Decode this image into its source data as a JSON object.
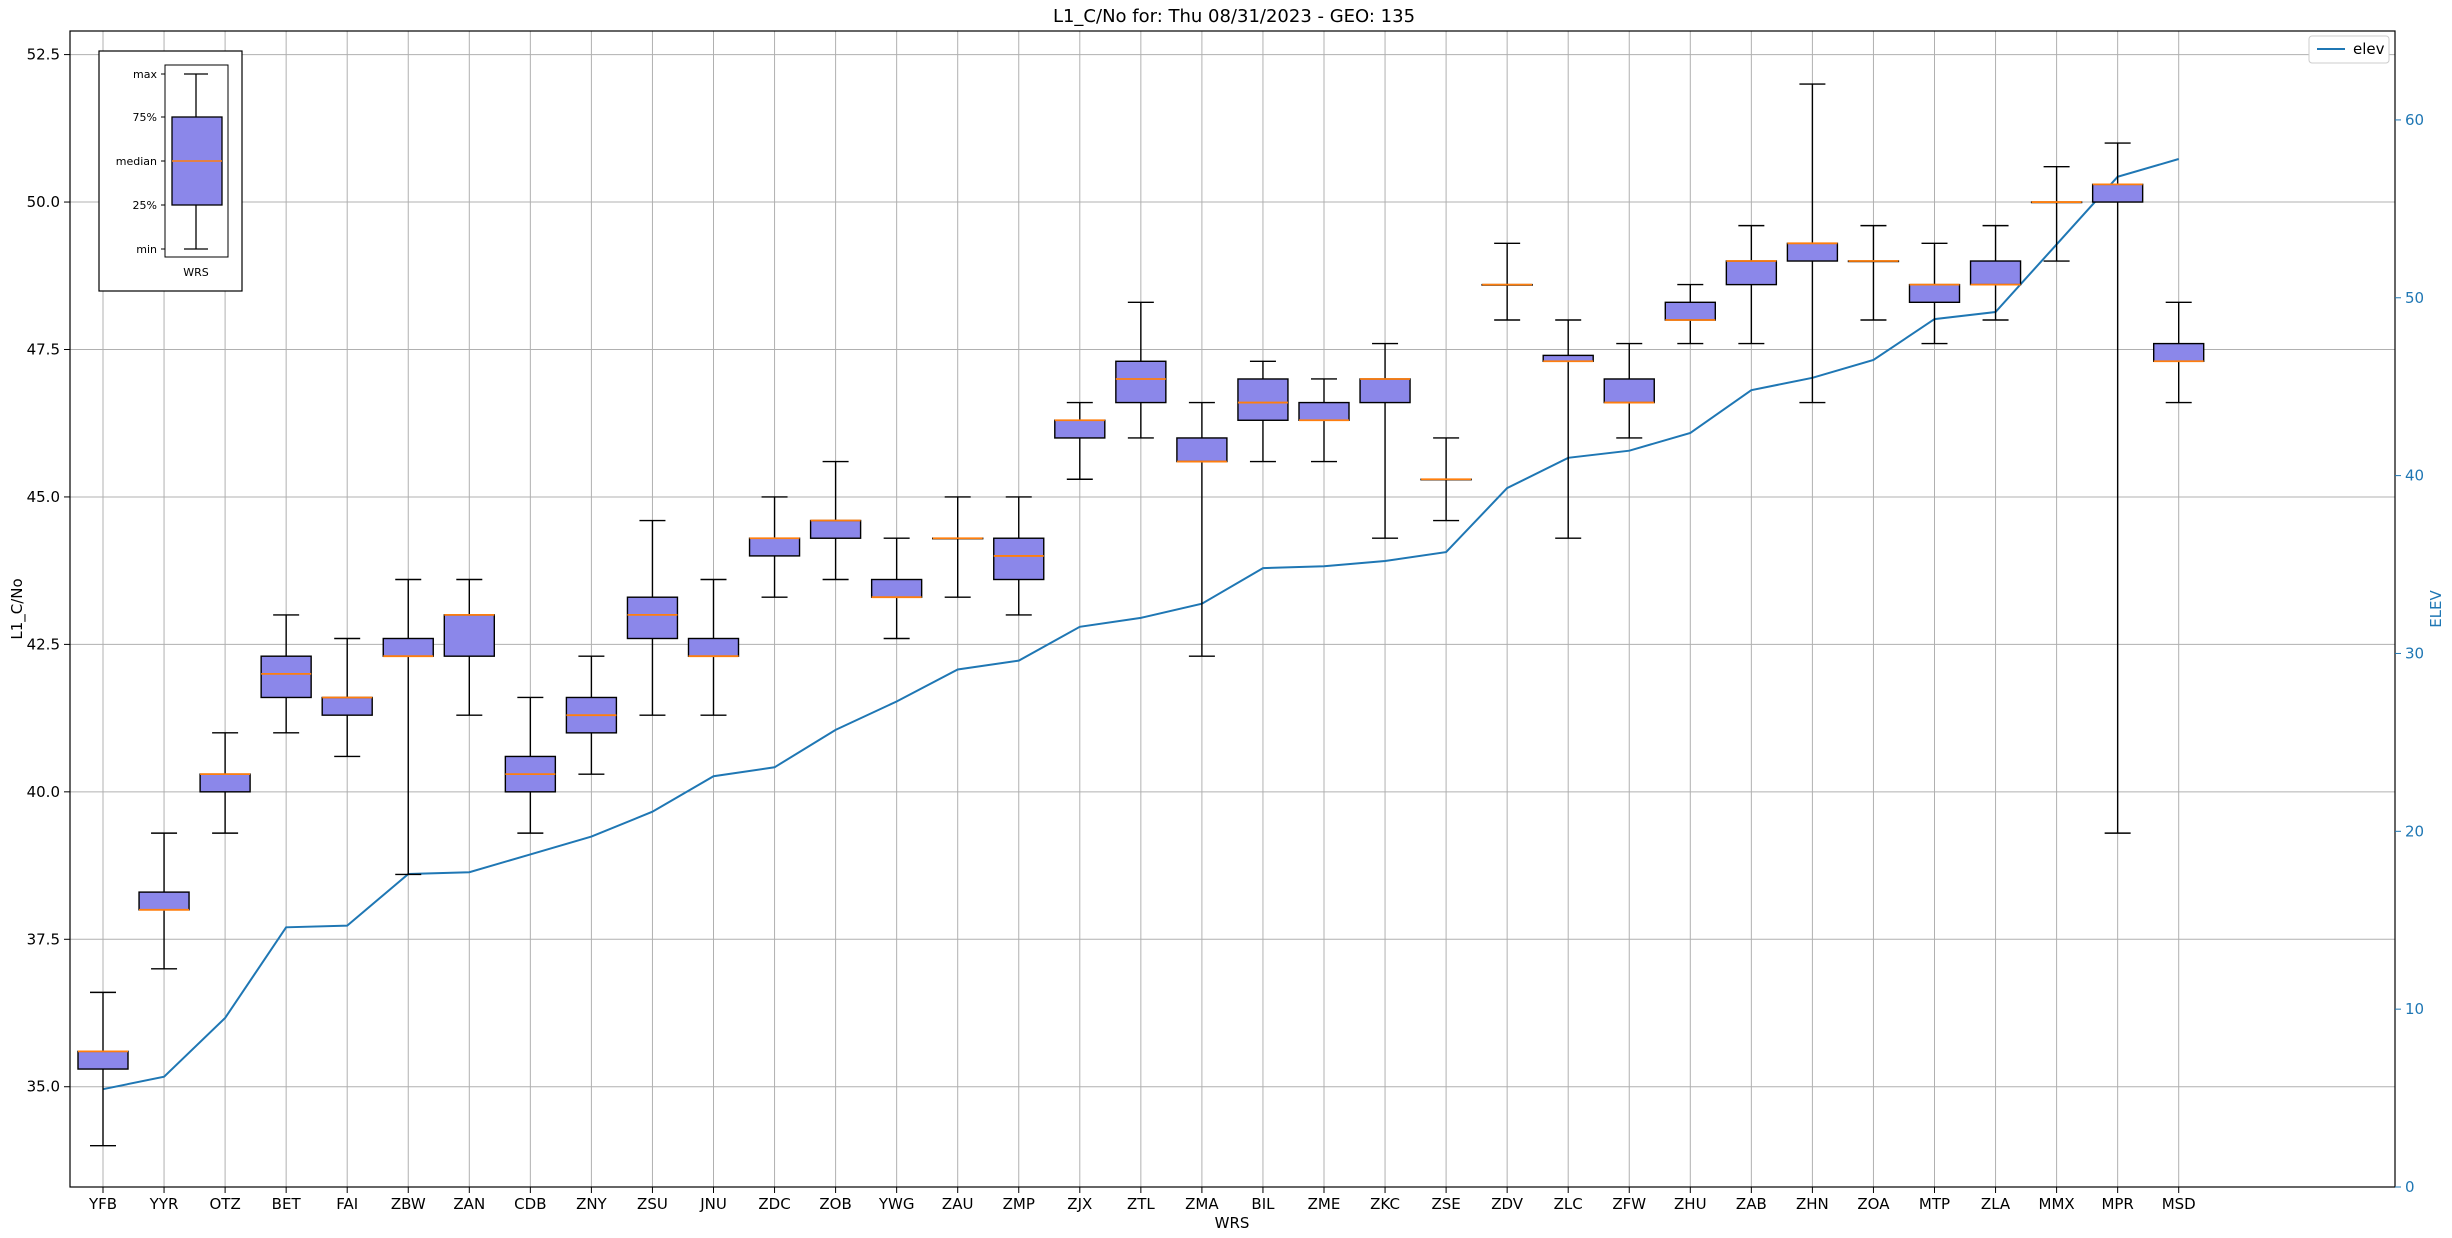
{
  "chart_data": {
    "type": "box",
    "title": "L1_C/No for: Thu 08/31/2023 - GEO: 135",
    "xlabel": "WRS",
    "ylabel": "L1_C/No",
    "ylabel_right": "ELEV",
    "ylim": [
      33.3,
      52.9
    ],
    "ylim_right": [
      0,
      65
    ],
    "yticks": [
      "35.0",
      "37.5",
      "40.0",
      "42.5",
      "45.0",
      "47.5",
      "50.0",
      "52.5"
    ],
    "yticks_right": [
      "0",
      "10",
      "20",
      "30",
      "40",
      "50",
      "60"
    ],
    "grid": true,
    "colors": {
      "box_fill": "#8b87ea",
      "median": "#ff7f0e",
      "elev_line": "#1f77b4",
      "grid": "#b0b0b0"
    },
    "categories": [
      "YFB",
      "YYR",
      "OTZ",
      "BET",
      "FAI",
      "ZBW",
      "ZAN",
      "CDB",
      "ZNY",
      "ZSU",
      "JNU",
      "ZDC",
      "ZOB",
      "YWG",
      "ZAU",
      "ZMP",
      "ZJX",
      "ZTL",
      "ZMA",
      "BIL",
      "ZME",
      "ZKC",
      "ZSE",
      "ZDV",
      "ZLC",
      "ZFW",
      "ZHU",
      "ZAB",
      "ZHN",
      "ZOA",
      "MTP",
      "ZLA",
      "MMX",
      "MPR",
      "MSD"
    ],
    "boxes": [
      {
        "min": 34.0,
        "q1": 35.3,
        "median": 35.6,
        "q3": 35.6,
        "max": 36.6
      },
      {
        "min": 37.0,
        "q1": 38.0,
        "median": 38.0,
        "q3": 38.3,
        "max": 39.3
      },
      {
        "min": 39.3,
        "q1": 40.0,
        "median": 40.3,
        "q3": 40.3,
        "max": 41.0
      },
      {
        "min": 41.0,
        "q1": 41.6,
        "median": 42.0,
        "q3": 42.3,
        "max": 43.0
      },
      {
        "min": 40.6,
        "q1": 41.3,
        "median": 41.6,
        "q3": 41.6,
        "max": 42.6
      },
      {
        "min": 38.6,
        "q1": 42.3,
        "median": 42.3,
        "q3": 42.6,
        "max": 43.6
      },
      {
        "min": 41.3,
        "q1": 42.3,
        "median": 43.0,
        "q3": 43.0,
        "max": 43.6
      },
      {
        "min": 39.3,
        "q1": 40.0,
        "median": 40.3,
        "q3": 40.6,
        "max": 41.6
      },
      {
        "min": 40.3,
        "q1": 41.0,
        "median": 41.3,
        "q3": 41.6,
        "max": 42.3
      },
      {
        "min": 41.3,
        "q1": 42.6,
        "median": 43.0,
        "q3": 43.3,
        "max": 44.6
      },
      {
        "min": 41.3,
        "q1": 42.3,
        "median": 42.3,
        "q3": 42.6,
        "max": 43.6
      },
      {
        "min": 43.3,
        "q1": 44.0,
        "median": 44.3,
        "q3": 44.3,
        "max": 45.0
      },
      {
        "min": 43.6,
        "q1": 44.3,
        "median": 44.6,
        "q3": 44.6,
        "max": 45.6
      },
      {
        "min": 42.6,
        "q1": 43.3,
        "median": 43.3,
        "q3": 43.6,
        "max": 44.3
      },
      {
        "min": 43.3,
        "q1": 44.3,
        "median": 44.3,
        "q3": 44.3,
        "max": 45.0
      },
      {
        "min": 43.0,
        "q1": 43.6,
        "median": 44.0,
        "q3": 44.3,
        "max": 45.0
      },
      {
        "min": 45.3,
        "q1": 46.0,
        "median": 46.3,
        "q3": 46.3,
        "max": 46.6
      },
      {
        "min": 46.0,
        "q1": 46.6,
        "median": 47.0,
        "q3": 47.3,
        "max": 48.3
      },
      {
        "min": 42.3,
        "q1": 45.6,
        "median": 45.6,
        "q3": 46.0,
        "max": 46.6
      },
      {
        "min": 45.6,
        "q1": 46.3,
        "median": 46.6,
        "q3": 47.0,
        "max": 47.3
      },
      {
        "min": 45.6,
        "q1": 46.3,
        "median": 46.3,
        "q3": 46.6,
        "max": 47.0
      },
      {
        "min": 44.3,
        "q1": 46.6,
        "median": 47.0,
        "q3": 47.0,
        "max": 47.6
      },
      {
        "min": 44.6,
        "q1": 45.3,
        "median": 45.3,
        "q3": 45.3,
        "max": 46.0
      },
      {
        "min": 48.0,
        "q1": 48.6,
        "median": 48.6,
        "q3": 48.6,
        "max": 49.3
      },
      {
        "min": 44.3,
        "q1": 47.3,
        "median": 47.3,
        "q3": 47.4,
        "max": 48.0
      },
      {
        "min": 46.0,
        "q1": 46.6,
        "median": 46.6,
        "q3": 47.0,
        "max": 47.6
      },
      {
        "min": 47.6,
        "q1": 48.0,
        "median": 48.0,
        "q3": 48.3,
        "max": 48.6
      },
      {
        "min": 47.6,
        "q1": 48.6,
        "median": 49.0,
        "q3": 49.0,
        "max": 49.6
      },
      {
        "min": 46.6,
        "q1": 49.0,
        "median": 49.3,
        "q3": 49.3,
        "max": 52.0
      },
      {
        "min": 48.0,
        "q1": 49.0,
        "median": 49.0,
        "q3": 49.0,
        "max": 49.6
      },
      {
        "min": 47.6,
        "q1": 48.3,
        "median": 48.6,
        "q3": 48.6,
        "max": 49.3
      },
      {
        "min": 48.0,
        "q1": 48.6,
        "median": 48.6,
        "q3": 49.0,
        "max": 49.6
      },
      {
        "min": 49.0,
        "q1": 50.0,
        "median": 50.0,
        "q3": 50.0,
        "max": 50.6
      },
      {
        "min": 39.3,
        "q1": 50.0,
        "median": 50.3,
        "q3": 50.3,
        "max": 51.0
      },
      {
        "min": 46.6,
        "q1": 47.3,
        "median": 47.3,
        "q3": 47.6,
        "max": 48.3
      }
    ],
    "series": [
      {
        "name": "elev",
        "axis": "right",
        "values": [
          5.5,
          6.2,
          9.5,
          14.6,
          14.7,
          17.6,
          17.7,
          18.7,
          19.7,
          21.1,
          23.1,
          23.6,
          25.7,
          27.3,
          29.1,
          29.6,
          31.5,
          32.0,
          32.8,
          34.8,
          34.9,
          35.2,
          35.7,
          39.3,
          41.0,
          41.4,
          42.4,
          44.8,
          45.5,
          46.5,
          48.8,
          49.2,
          53.0,
          56.8,
          57.8
        ]
      }
    ],
    "legend": {
      "entries": [
        "elev"
      ],
      "position": "top-right"
    },
    "inset_legend": {
      "position": "top-left",
      "labels": [
        "max",
        "75%",
        "median",
        "25%",
        "min"
      ],
      "xlabel": "WRS"
    }
  }
}
